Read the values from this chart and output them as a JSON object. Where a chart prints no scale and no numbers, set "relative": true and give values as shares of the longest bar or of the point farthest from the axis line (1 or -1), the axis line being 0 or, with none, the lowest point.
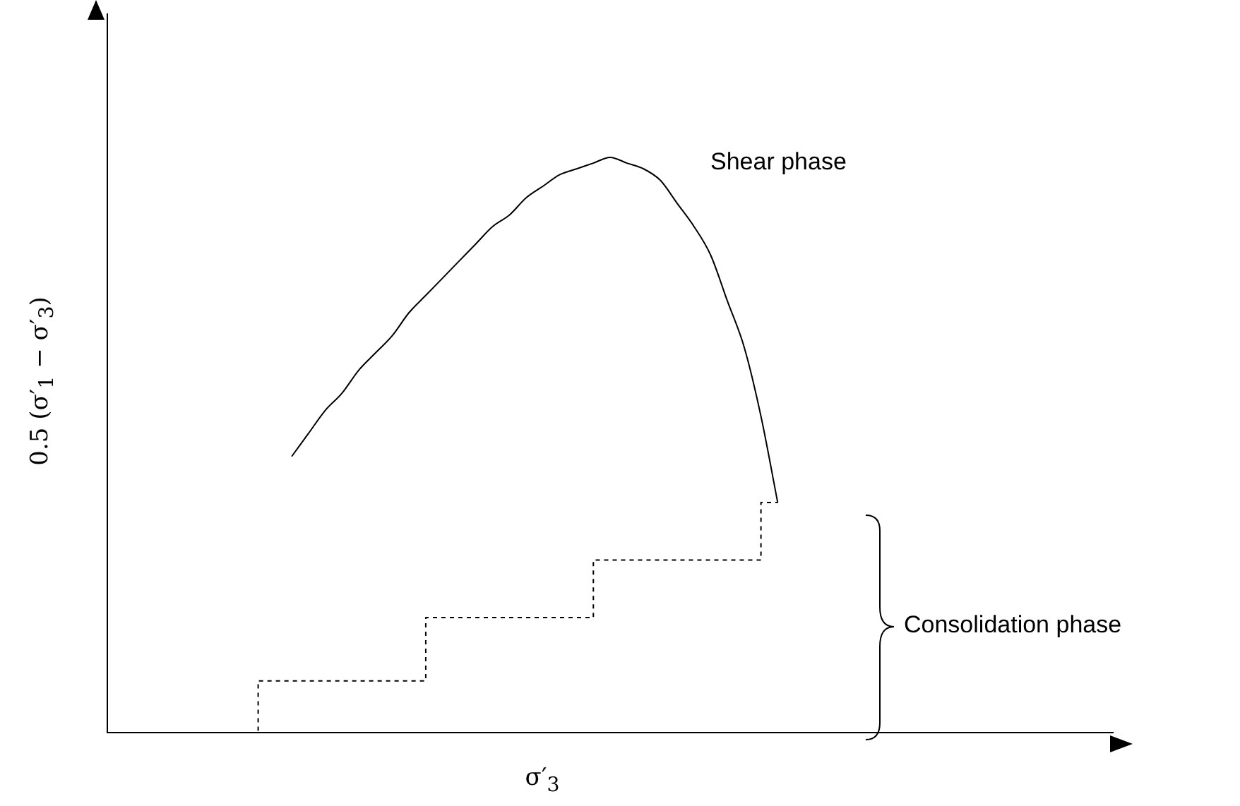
{
  "chart_data": {
    "type": "line",
    "relative": true,
    "marker": "none",
    "xlabel": "σ′$_{3}$",
    "ylabel": "0.5 (σ′$_{1}$ − σ′$_{3}$)",
    "annotations": [
      "Shear phase",
      "Consolidation phase"
    ],
    "categories": [
      null,
      null,
      null,
      null,
      null,
      null,
      null,
      null,
      null,
      null,
      null,
      null,
      null,
      null,
      null,
      null,
      null,
      null,
      null,
      null,
      null,
      null,
      null,
      null,
      null,
      null,
      null,
      null,
      null,
      null,
      null,
      null,
      null,
      null,
      null,
      null,
      null,
      null,
      null,
      null,
      null,
      null,
      null,
      null,
      null,
      null,
      null,
      null,
      null,
      null,
      null,
      null,
      null,
      null,
      null,
      null,
      null,
      null,
      null,
      null,
      null
    ],
    "series": [
      {
        "type": "step",
        "color": "#000000",
        "line_style": "dashed",
        "values": [
          0,
          0,
          0,
          0,
          0,
          0,
          0,
          0,
          0,
          0,
          0.09,
          0.09,
          0.09,
          0.09,
          0.09,
          0.09,
          0.09,
          0.09,
          0.09,
          0.09,
          0.2,
          0.2,
          0.2,
          0.2,
          0.2,
          0.2,
          0.2,
          0.2,
          0.2,
          0.2,
          0.3,
          0.3,
          0.3,
          0.3,
          0.3,
          0.3,
          0.3,
          0.3,
          0.3,
          0.3,
          0.4,
          null,
          null,
          null,
          null,
          null,
          null,
          null,
          null,
          null,
          null,
          null,
          null,
          null,
          null,
          null,
          null,
          null,
          null,
          null,
          null
        ]
      },
      {
        "type": "line",
        "color": "#000000",
        "line_style": "solid",
        "values": [
          null,
          null,
          null,
          null,
          null,
          null,
          null,
          null,
          null,
          null,
          null,
          0.48,
          0.52,
          0.56,
          0.59,
          0.63,
          0.66,
          0.69,
          0.73,
          0.76,
          0.79,
          0.82,
          0.85,
          0.88,
          0.9,
          0.93,
          0.95,
          0.97,
          0.98,
          0.99,
          1,
          0.99,
          0.98,
          0.96,
          0.92,
          0.88,
          0.83,
          0.75,
          0.67,
          0.55,
          0.4,
          null,
          null,
          null,
          null,
          null,
          null,
          null,
          null,
          null,
          null,
          null,
          null,
          null,
          null,
          null,
          null,
          null,
          null,
          null,
          null
        ]
      }
    ]
  }
}
